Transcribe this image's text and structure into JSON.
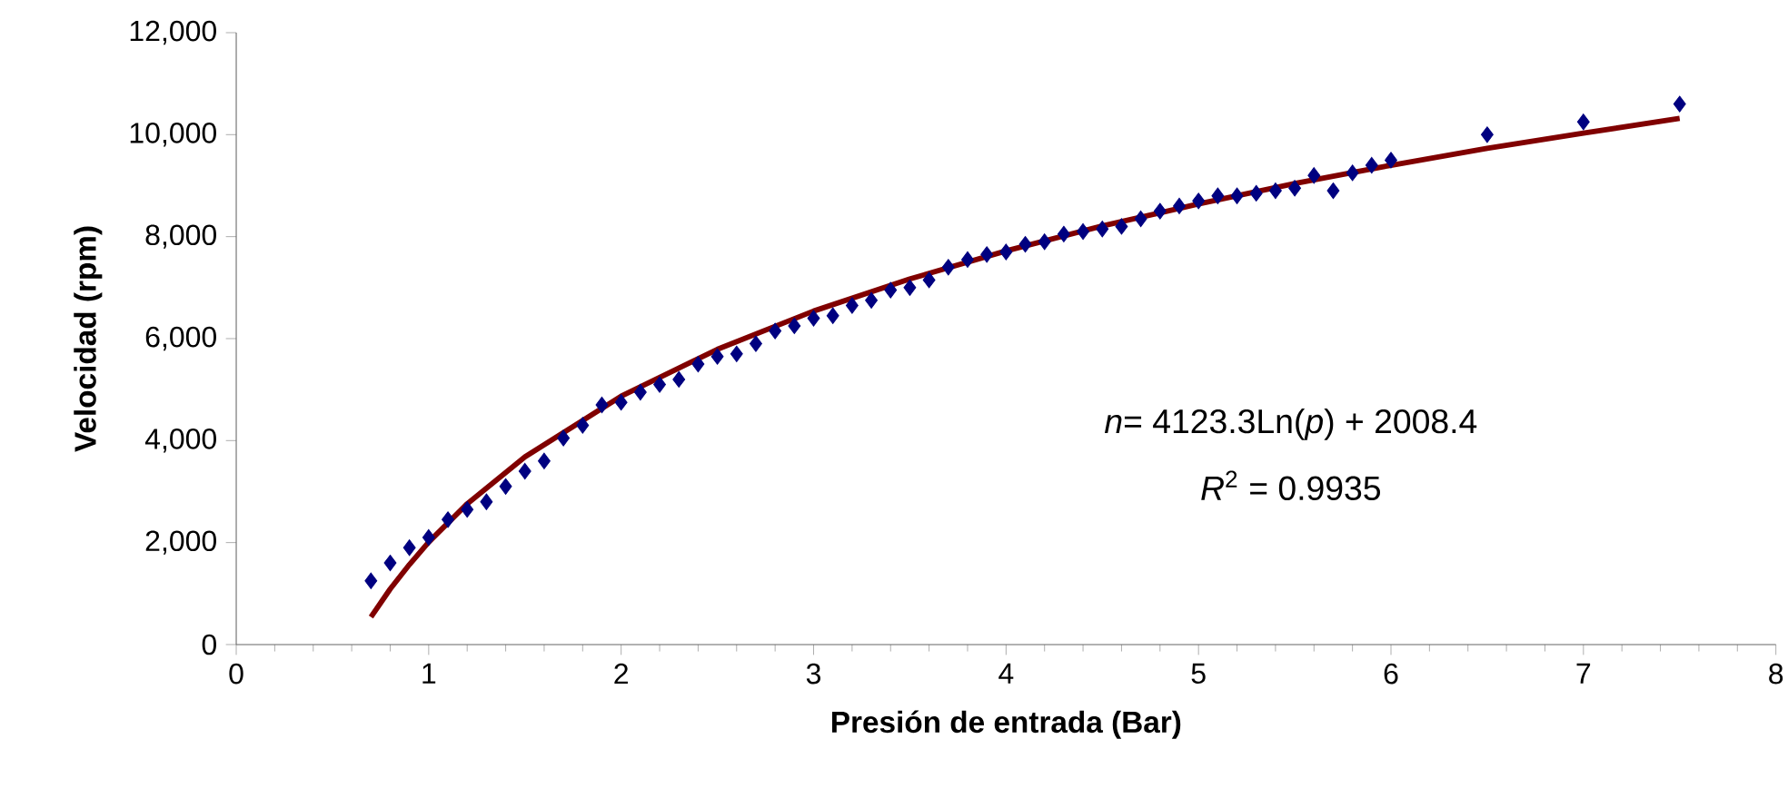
{
  "chart_data": {
    "type": "scatter",
    "xlabel": "Presión de entrada (Bar)",
    "ylabel": "Velocidad (rpm)",
    "xlim": [
      0,
      8
    ],
    "xticks": [
      0,
      1,
      2,
      3,
      4,
      5,
      6,
      7,
      8
    ],
    "ylim": [
      0,
      12000
    ],
    "yticks": [
      0,
      {
        "value": 2000,
        "label": "2,000"
      },
      {
        "value": 4000,
        "label": "4,000"
      },
      {
        "value": 6000,
        "label": "6,000"
      },
      {
        "value": 8000,
        "label": "8,000"
      },
      {
        "value": 10000,
        "label": "10,000"
      },
      {
        "value": 12000,
        "label": "12,000"
      }
    ],
    "grid": false,
    "series": [
      {
        "color": "#000080",
        "marker": "diamond",
        "x": [
          0.7,
          0.8,
          0.9,
          1.0,
          1.1,
          1.2,
          1.3,
          1.4,
          1.5,
          1.6,
          1.7,
          1.8,
          1.9,
          2.0,
          2.1,
          2.2,
          2.3,
          2.4,
          2.5,
          2.6,
          2.7,
          2.8,
          2.9,
          3.0,
          3.1,
          3.2,
          3.3,
          3.4,
          3.5,
          3.6,
          3.7,
          3.8,
          3.9,
          4.0,
          4.1,
          4.2,
          4.3,
          4.4,
          4.5,
          4.6,
          4.7,
          4.8,
          4.9,
          5.0,
          5.1,
          5.2,
          5.3,
          5.4,
          5.5,
          5.6,
          5.7,
          5.8,
          5.9,
          6.0,
          6.5,
          7.0,
          7.5
        ],
        "values": [
          1250,
          1600,
          1900,
          2100,
          2450,
          2650,
          2800,
          3100,
          3400,
          3600,
          4050,
          4300,
          4700,
          4750,
          4950,
          5100,
          5200,
          5500,
          5650,
          5700,
          5900,
          6150,
          6250,
          6400,
          6450,
          6650,
          6750,
          6950,
          7000,
          7150,
          7400,
          7550,
          7650,
          7700,
          7850,
          7900,
          8050,
          8100,
          8150,
          8200,
          8350,
          8500,
          8600,
          8700,
          8800,
          8800,
          8850,
          8900,
          8950,
          9200,
          8900,
          9250,
          9400,
          9500,
          10000,
          10250,
          10600
        ]
      },
      {
        "type": "line",
        "color": "#800000",
        "marker": "none",
        "line_style": "solid",
        "x": [
          0.7,
          0.8,
          0.9,
          1.0,
          1.2,
          1.5,
          2.0,
          2.5,
          3.0,
          3.5,
          4.0,
          4.5,
          5.0,
          5.5,
          6.0,
          6.5,
          7.0,
          7.5
        ],
        "values": [
          540,
          1090,
          1570,
          2010,
          2760,
          3680,
          4870,
          5790,
          6540,
          7170,
          7720,
          8210,
          8640,
          9040,
          9400,
          9730,
          10030,
          10320
        ]
      }
    ],
    "annotations": [
      "*n*= 4123.3Ln(*p*) + 2008.4",
      "*R*$^{2}$ = 0.9935"
    ]
  }
}
